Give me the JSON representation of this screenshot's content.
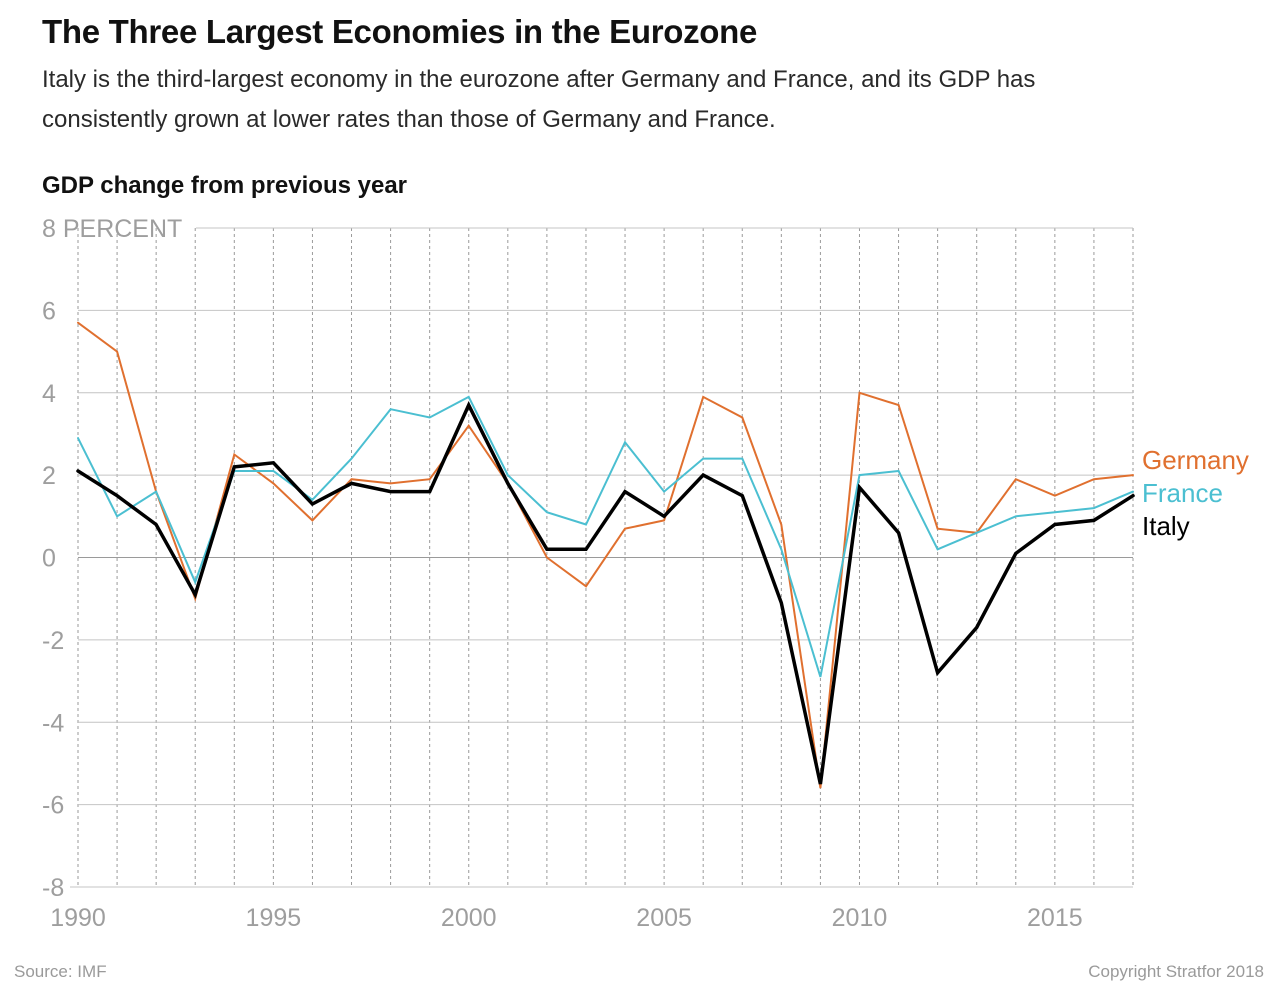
{
  "header": {
    "title": "The Three Largest Economies in the Eurozone",
    "subtitle": "Italy is the third-largest economy in the eurozone after Germany and France, and its GDP has consistently grown at lower rates than those of Germany and France."
  },
  "footer": {
    "source": "Source: IMF",
    "copyright": "Copyright Stratfor 2018"
  },
  "chart_data": {
    "type": "line",
    "title": "GDP change from previous year",
    "ylabel": "PERCENT",
    "xlim": [
      1990,
      2017
    ],
    "ylim": [
      -8,
      8
    ],
    "x_ticks": [
      1990,
      1995,
      2000,
      2005,
      2010,
      2015
    ],
    "x_tick_labels": [
      "1990",
      "1995",
      "2000",
      "2005",
      "2010",
      "2015"
    ],
    "y_ticks": [
      -8,
      -6,
      -4,
      -2,
      0,
      2,
      4,
      6,
      8
    ],
    "y_tick_labels": [
      "-8",
      "-6",
      "-4",
      "-2",
      "0",
      "2",
      "4",
      "6",
      "8 PERCENT"
    ],
    "grid": true,
    "legend_placement": "right",
    "x": [
      1990,
      1991,
      1992,
      1993,
      1994,
      1995,
      1996,
      1997,
      1998,
      1999,
      2000,
      2001,
      2002,
      2003,
      2004,
      2005,
      2006,
      2007,
      2008,
      2009,
      2010,
      2011,
      2012,
      2013,
      2014,
      2015,
      2016,
      2017
    ],
    "series": [
      {
        "name": "Germany",
        "color": "#e0702f",
        "values": [
          5.7,
          5.0,
          1.6,
          -1.0,
          2.5,
          1.8,
          0.9,
          1.9,
          1.8,
          1.9,
          3.2,
          1.8,
          0.0,
          -0.7,
          0.7,
          0.9,
          3.9,
          3.4,
          0.8,
          -5.6,
          4.0,
          3.7,
          0.7,
          0.6,
          1.9,
          1.5,
          1.9,
          2.0
        ]
      },
      {
        "name": "France",
        "color": "#4bbfd1",
        "values": [
          2.9,
          1.0,
          1.6,
          -0.6,
          2.1,
          2.1,
          1.4,
          2.4,
          3.6,
          3.4,
          3.9,
          2.0,
          1.1,
          0.8,
          2.8,
          1.6,
          2.4,
          2.4,
          0.2,
          -2.9,
          2.0,
          2.1,
          0.2,
          0.6,
          1.0,
          1.1,
          1.2,
          1.6
        ]
      },
      {
        "name": "Italy",
        "color": "#000000",
        "values": [
          2.1,
          1.5,
          0.8,
          -0.9,
          2.2,
          2.3,
          1.3,
          1.8,
          1.6,
          1.6,
          3.7,
          1.8,
          0.2,
          0.2,
          1.6,
          1.0,
          2.0,
          1.5,
          -1.1,
          -5.5,
          1.7,
          0.6,
          -2.8,
          -1.7,
          0.1,
          0.8,
          0.9,
          1.5
        ]
      }
    ]
  }
}
